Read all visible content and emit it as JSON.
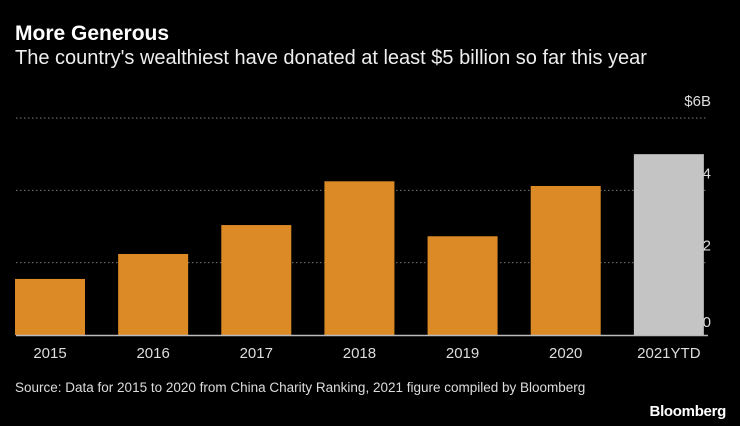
{
  "chart_data": {
    "type": "bar",
    "title": "More Generous",
    "subtitle": "The country's wealthiest have donated at least $5 billion so far this year",
    "categories": [
      "2015",
      "2016",
      "2017",
      "2018",
      "2019",
      "2020",
      "2021YTD"
    ],
    "values": [
      1.55,
      2.24,
      3.04,
      4.25,
      2.73,
      4.12,
      5.0
    ],
    "colors": [
      "#dc8a26",
      "#dc8a26",
      "#dc8a26",
      "#dc8a26",
      "#dc8a26",
      "#dc8a26",
      "#c4c4c4"
    ],
    "ylabel": "",
    "xlabel": "",
    "unit": "$B",
    "ylim": [
      0,
      6
    ],
    "yticks": [
      0,
      2,
      4,
      6
    ],
    "ytick_labels": [
      "0",
      "2",
      "4",
      "$6B"
    ],
    "grid": true,
    "y_axis_side": "right"
  },
  "source": "Source: Data for 2015 to 2020 from China Charity Ranking, 2021 figure compiled by Bloomberg",
  "brand": "Bloomberg"
}
